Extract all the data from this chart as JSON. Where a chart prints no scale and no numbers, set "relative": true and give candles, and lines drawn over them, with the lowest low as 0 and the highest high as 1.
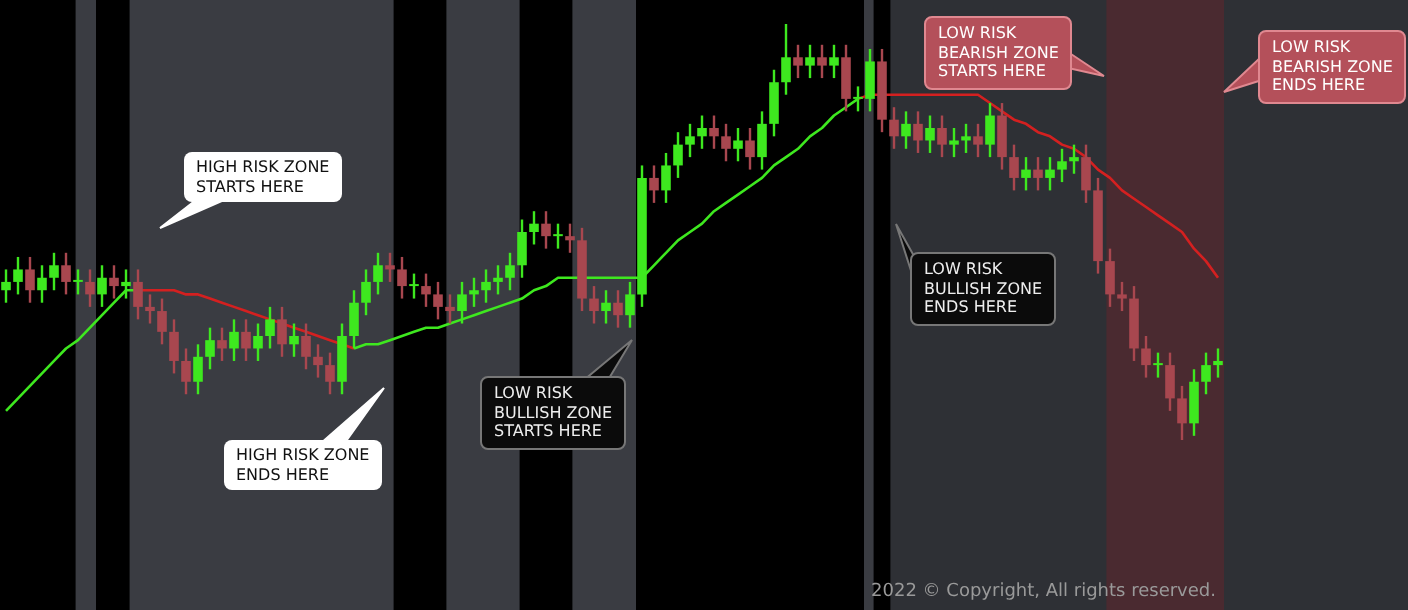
{
  "chart_data": {
    "type": "candlestick",
    "relative": true,
    "tick_labels": false,
    "legend": false,
    "categories": [
      null,
      null,
      null,
      null,
      null,
      null,
      null,
      null,
      null,
      null,
      null,
      null,
      null,
      null,
      null,
      null,
      null,
      null,
      null,
      null,
      null,
      null,
      null,
      null,
      null,
      null,
      null,
      null,
      null,
      null,
      null,
      null,
      null,
      null,
      null,
      null,
      null,
      null,
      null,
      null,
      null,
      null,
      null,
      null,
      null,
      null,
      null,
      null,
      null,
      null,
      null,
      null,
      null,
      null,
      null,
      null,
      null,
      null,
      null,
      null,
      null,
      null,
      null,
      null,
      null,
      null,
      null,
      null,
      null,
      null,
      null,
      null,
      null,
      null,
      null,
      null,
      null,
      null,
      null,
      null,
      null,
      null,
      null,
      null,
      null,
      null,
      null,
      null,
      null,
      null,
      null,
      null,
      null,
      null,
      null,
      null,
      null,
      null,
      null,
      null,
      null,
      null
    ],
    "ohlc": [
      [
        0.36,
        0.41,
        0.33,
        0.38
      ],
      [
        0.38,
        0.44,
        0.35,
        0.41
      ],
      [
        0.41,
        0.44,
        0.33,
        0.36
      ],
      [
        0.36,
        0.42,
        0.33,
        0.39
      ],
      [
        0.39,
        0.45,
        0.36,
        0.42
      ],
      [
        0.42,
        0.45,
        0.35,
        0.38
      ],
      [
        0.38,
        0.41,
        0.35,
        0.38
      ],
      [
        0.38,
        0.41,
        0.32,
        0.35
      ],
      [
        0.35,
        0.42,
        0.32,
        0.39
      ],
      [
        0.39,
        0.42,
        0.34,
        0.37
      ],
      [
        0.37,
        0.41,
        0.34,
        0.38
      ],
      [
        0.38,
        0.41,
        0.29,
        0.32
      ],
      [
        0.32,
        0.35,
        0.28,
        0.31
      ],
      [
        0.31,
        0.34,
        0.23,
        0.26
      ],
      [
        0.26,
        0.29,
        0.16,
        0.19
      ],
      [
        0.19,
        0.22,
        0.11,
        0.14
      ],
      [
        0.14,
        0.23,
        0.11,
        0.2
      ],
      [
        0.2,
        0.27,
        0.17,
        0.24
      ],
      [
        0.24,
        0.27,
        0.19,
        0.22
      ],
      [
        0.22,
        0.29,
        0.19,
        0.26
      ],
      [
        0.26,
        0.29,
        0.19,
        0.22
      ],
      [
        0.22,
        0.28,
        0.19,
        0.25
      ],
      [
        0.25,
        0.32,
        0.22,
        0.29
      ],
      [
        0.29,
        0.32,
        0.2,
        0.23
      ],
      [
        0.23,
        0.28,
        0.2,
        0.25
      ],
      [
        0.25,
        0.28,
        0.17,
        0.2
      ],
      [
        0.2,
        0.23,
        0.15,
        0.18
      ],
      [
        0.18,
        0.21,
        0.11,
        0.14
      ],
      [
        0.14,
        0.28,
        0.11,
        0.25
      ],
      [
        0.25,
        0.36,
        0.22,
        0.33
      ],
      [
        0.33,
        0.41,
        0.3,
        0.38
      ],
      [
        0.38,
        0.45,
        0.35,
        0.42
      ],
      [
        0.42,
        0.45,
        0.38,
        0.41
      ],
      [
        0.41,
        0.44,
        0.34,
        0.37
      ],
      [
        0.37,
        0.4,
        0.34,
        0.37
      ],
      [
        0.37,
        0.4,
        0.32,
        0.35
      ],
      [
        0.35,
        0.38,
        0.29,
        0.32
      ],
      [
        0.32,
        0.35,
        0.28,
        0.31
      ],
      [
        0.31,
        0.38,
        0.28,
        0.35
      ],
      [
        0.35,
        0.39,
        0.32,
        0.36
      ],
      [
        0.36,
        0.41,
        0.33,
        0.38
      ],
      [
        0.38,
        0.42,
        0.35,
        0.39
      ],
      [
        0.39,
        0.45,
        0.36,
        0.42
      ],
      [
        0.42,
        0.53,
        0.39,
        0.5
      ],
      [
        0.5,
        0.55,
        0.47,
        0.52
      ],
      [
        0.52,
        0.55,
        0.46,
        0.49
      ],
      [
        0.49,
        0.52,
        0.46,
        0.49
      ],
      [
        0.49,
        0.52,
        0.45,
        0.48
      ],
      [
        0.48,
        0.51,
        0.31,
        0.34
      ],
      [
        0.34,
        0.37,
        0.28,
        0.31
      ],
      [
        0.31,
        0.36,
        0.28,
        0.33
      ],
      [
        0.33,
        0.36,
        0.27,
        0.3
      ],
      [
        0.3,
        0.38,
        0.27,
        0.35
      ],
      [
        0.35,
        0.66,
        0.32,
        0.63
      ],
      [
        0.63,
        0.66,
        0.57,
        0.6
      ],
      [
        0.6,
        0.69,
        0.57,
        0.66
      ],
      [
        0.66,
        0.74,
        0.63,
        0.71
      ],
      [
        0.71,
        0.76,
        0.68,
        0.73
      ],
      [
        0.73,
        0.78,
        0.7,
        0.75
      ],
      [
        0.75,
        0.78,
        0.7,
        0.73
      ],
      [
        0.73,
        0.76,
        0.67,
        0.7
      ],
      [
        0.7,
        0.75,
        0.67,
        0.72
      ],
      [
        0.72,
        0.75,
        0.65,
        0.68
      ],
      [
        0.68,
        0.79,
        0.65,
        0.76
      ],
      [
        0.76,
        0.89,
        0.73,
        0.86
      ],
      [
        0.86,
        1,
        0.83,
        0.92
      ],
      [
        0.92,
        0.95,
        0.87,
        0.9
      ],
      [
        0.9,
        0.95,
        0.87,
        0.92
      ],
      [
        0.92,
        0.95,
        0.87,
        0.9
      ],
      [
        0.9,
        0.95,
        0.87,
        0.92
      ],
      [
        0.92,
        0.95,
        0.79,
        0.82
      ],
      [
        0.82,
        0.85,
        0.79,
        0.82
      ],
      [
        0.82,
        0.94,
        0.79,
        0.91
      ],
      [
        0.91,
        0.94,
        0.74,
        0.77
      ],
      [
        0.77,
        0.8,
        0.7,
        0.73
      ],
      [
        0.73,
        0.79,
        0.7,
        0.76
      ],
      [
        0.76,
        0.79,
        0.69,
        0.72
      ],
      [
        0.72,
        0.78,
        0.69,
        0.75
      ],
      [
        0.75,
        0.78,
        0.68,
        0.71
      ],
      [
        0.71,
        0.75,
        0.68,
        0.72
      ],
      [
        0.72,
        0.76,
        0.69,
        0.73
      ],
      [
        0.73,
        0.76,
        0.68,
        0.71
      ],
      [
        0.71,
        0.81,
        0.68,
        0.78
      ],
      [
        0.78,
        0.81,
        0.65,
        0.68
      ],
      [
        0.68,
        0.71,
        0.6,
        0.63
      ],
      [
        0.63,
        0.68,
        0.6,
        0.65
      ],
      [
        0.65,
        0.68,
        0.6,
        0.63
      ],
      [
        0.63,
        0.68,
        0.6,
        0.65
      ],
      [
        0.65,
        0.7,
        0.62,
        0.67
      ],
      [
        0.67,
        0.71,
        0.64,
        0.68
      ],
      [
        0.68,
        0.71,
        0.57,
        0.6
      ],
      [
        0.6,
        0.63,
        0.4,
        0.43
      ],
      [
        0.43,
        0.46,
        0.32,
        0.35
      ],
      [
        0.35,
        0.38,
        0.31,
        0.34
      ],
      [
        0.34,
        0.37,
        0.19,
        0.22
      ],
      [
        0.22,
        0.25,
        0.15,
        0.18
      ],
      [
        0.18,
        0.21,
        0.15,
        0.18
      ],
      [
        0.18,
        0.21,
        0.07,
        0.1
      ],
      [
        0.1,
        0.13,
        0,
        0.04
      ],
      [
        0.04,
        0.17,
        0.01,
        0.14
      ],
      [
        0.14,
        0.21,
        0.11,
        0.18
      ],
      [
        0.18,
        0.22,
        0.15,
        0.19
      ]
    ],
    "colors": [
      "#3ee81f",
      "#3ee81f",
      "#a8474f",
      "#3ee81f",
      "#3ee81f",
      "#a8474f",
      "#3ee81f",
      "#a8474f",
      "#3ee81f",
      "#a8474f",
      "#3ee81f",
      "#a8474f",
      "#a8474f",
      "#a8474f",
      "#a8474f",
      "#a8474f",
      "#3ee81f",
      "#3ee81f",
      "#a8474f",
      "#3ee81f",
      "#a8474f",
      "#3ee81f",
      "#3ee81f",
      "#a8474f",
      "#3ee81f",
      "#a8474f",
      "#a8474f",
      "#a8474f",
      "#3ee81f",
      "#3ee81f",
      "#3ee81f",
      "#3ee81f",
      "#a8474f",
      "#a8474f",
      "#3ee81f",
      "#a8474f",
      "#a8474f",
      "#a8474f",
      "#3ee81f",
      "#3ee81f",
      "#3ee81f",
      "#3ee81f",
      "#3ee81f",
      "#3ee81f",
      "#3ee81f",
      "#a8474f",
      "#3ee81f",
      "#a8474f",
      "#a8474f",
      "#a8474f",
      "#3ee81f",
      "#a8474f",
      "#3ee81f",
      "#3ee81f",
      "#a8474f",
      "#3ee81f",
      "#3ee81f",
      "#3ee81f",
      "#3ee81f",
      "#a8474f",
      "#a8474f",
      "#3ee81f",
      "#a8474f",
      "#3ee81f",
      "#3ee81f",
      "#3ee81f",
      "#a8474f",
      "#3ee81f",
      "#a8474f",
      "#3ee81f",
      "#a8474f",
      "#3ee81f",
      "#3ee81f",
      "#a8474f",
      "#a8474f",
      "#3ee81f",
      "#a8474f",
      "#3ee81f",
      "#a8474f",
      "#3ee81f",
      "#3ee81f",
      "#a8474f",
      "#3ee81f",
      "#a8474f",
      "#a8474f",
      "#3ee81f",
      "#a8474f",
      "#3ee81f",
      "#3ee81f",
      "#3ee81f",
      "#a8474f",
      "#a8474f",
      "#a8474f",
      "#a8474f",
      "#a8474f",
      "#a8474f",
      "#3ee81f",
      "#a8474f",
      "#a8474f",
      "#3ee81f",
      "#3ee81f",
      "#3ee81f"
    ],
    "series": [
      {
        "type": "line",
        "color": "#3ee81f",
        "values": [
          0.07,
          0.1,
          0.13,
          0.16,
          0.19,
          0.22,
          0.24,
          0.27,
          0.3,
          0.33,
          0.36,
          0.36,
          null,
          null,
          null,
          null,
          null,
          null,
          null,
          null,
          null,
          null,
          null,
          null,
          null,
          null,
          null,
          null,
          null,
          0.22,
          0.23,
          0.23,
          0.24,
          0.25,
          0.26,
          0.27,
          0.27,
          0.28,
          0.29,
          0.3,
          0.31,
          0.32,
          0.33,
          0.34,
          0.36,
          0.37,
          0.39,
          0.39,
          0.39,
          0.39,
          0.39,
          0.39,
          0.39,
          0.39,
          0.42,
          0.45,
          0.48,
          0.5,
          0.52,
          0.55,
          0.57,
          0.59,
          0.61,
          0.63,
          0.66,
          0.68,
          0.7,
          0.73,
          0.75,
          0.78,
          0.8,
          0.82,
          null,
          null,
          null,
          null,
          null,
          null,
          null,
          null,
          null,
          null,
          null,
          null,
          null,
          null,
          null,
          null,
          null,
          null,
          null,
          null,
          null,
          null,
          null,
          null,
          null,
          null,
          null,
          null,
          null,
          null
        ]
      },
      {
        "type": "line",
        "color": "#d42020",
        "values": [
          null,
          null,
          null,
          null,
          null,
          null,
          null,
          null,
          null,
          null,
          null,
          0.36,
          0.36,
          0.36,
          0.36,
          0.35,
          0.35,
          0.34,
          0.33,
          0.32,
          0.31,
          0.3,
          0.29,
          0.28,
          0.27,
          0.26,
          0.25,
          0.24,
          0.23,
          0.22,
          null,
          null,
          null,
          null,
          null,
          null,
          null,
          null,
          null,
          null,
          null,
          null,
          null,
          null,
          null,
          null,
          null,
          null,
          null,
          null,
          null,
          null,
          null,
          null,
          null,
          null,
          null,
          null,
          null,
          null,
          null,
          null,
          null,
          null,
          null,
          null,
          null,
          null,
          null,
          null,
          null,
          0.82,
          0.83,
          0.83,
          0.83,
          0.83,
          0.83,
          0.83,
          0.83,
          0.83,
          0.83,
          0.83,
          0.81,
          0.79,
          0.77,
          0.76,
          0.74,
          0.73,
          0.71,
          0.7,
          0.68,
          0.65,
          0.63,
          0.6,
          0.58,
          0.56,
          0.54,
          0.52,
          0.5,
          0.46,
          0.43,
          0.39
        ]
      }
    ],
    "annotations": [
      "HIGH RISK ZONE\nSTARTS HERE",
      "HIGH RISK ZONE\nENDS HERE",
      "LOW RISK\nBULLISH ZONE\nSTARTS HERE",
      "LOW RISK\nBULLISH ZONE\nENDS HERE",
      "LOW RISK\nBEARISH ZONE\nSTARTS HERE",
      "LOW RISK\nBEARISH ZONE\nENDS HERE",
      "2022 © Copyright,  All rights reserved."
    ]
  }
}
